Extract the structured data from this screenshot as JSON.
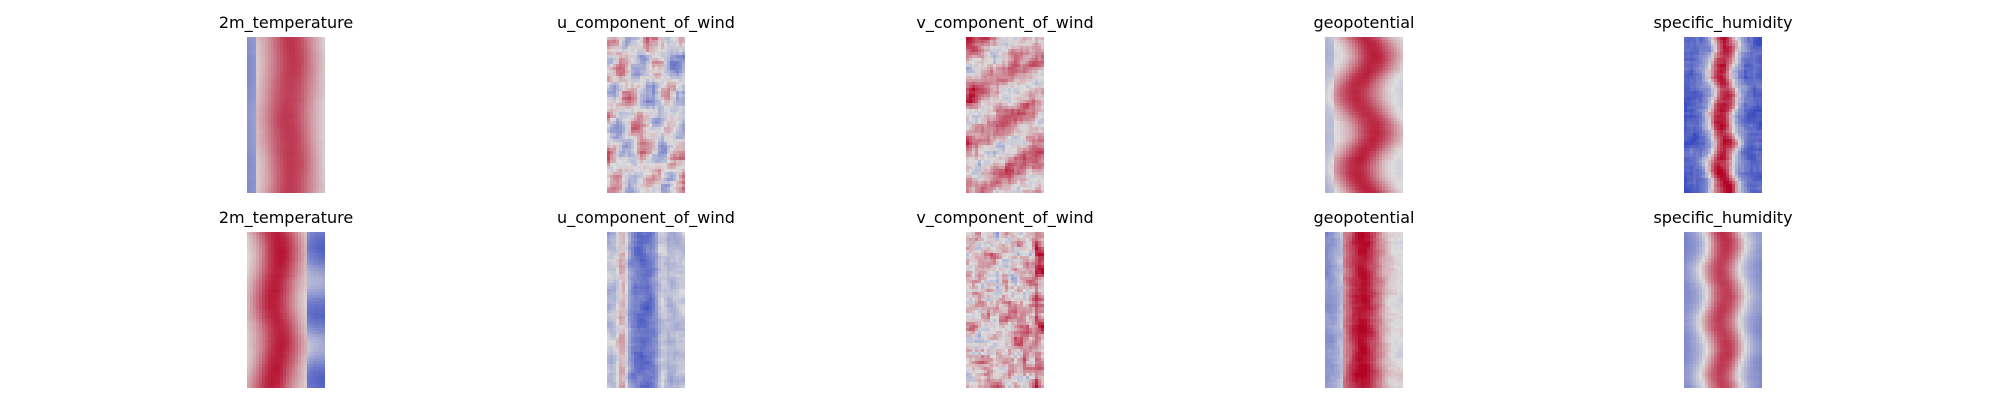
{
  "chart_data": {
    "type": "heatmap",
    "colormap": "coolwarm",
    "colors": {
      "low": "#3b4cc0",
      "mid": "#dddcdc",
      "high": "#b40426"
    },
    "layout": "grid",
    "grid_shape": [
      2,
      5
    ],
    "axes": "off",
    "panels": [
      {
        "title": "2m_temperature",
        "pattern": "warm-band"
      },
      {
        "title": "u_component_of_wind",
        "pattern": "turbulent-mixed"
      },
      {
        "title": "v_component_of_wind",
        "pattern": "turbulent-mixed-warm"
      },
      {
        "title": "geopotential",
        "pattern": "warm-band-wavy"
      },
      {
        "title": "specific_humidity",
        "pattern": "narrow-warm-band-cold-edges"
      },
      {
        "title": "2m_temperature",
        "pattern": "warm-band-cold-right"
      },
      {
        "title": "u_component_of_wind",
        "pattern": "cold-band"
      },
      {
        "title": "v_component_of_wind",
        "pattern": "noisy-neutral"
      },
      {
        "title": "geopotential",
        "pattern": "warm-band-cold-left"
      },
      {
        "title": "specific_humidity",
        "pattern": "warm-band-cold-edges"
      }
    ]
  }
}
